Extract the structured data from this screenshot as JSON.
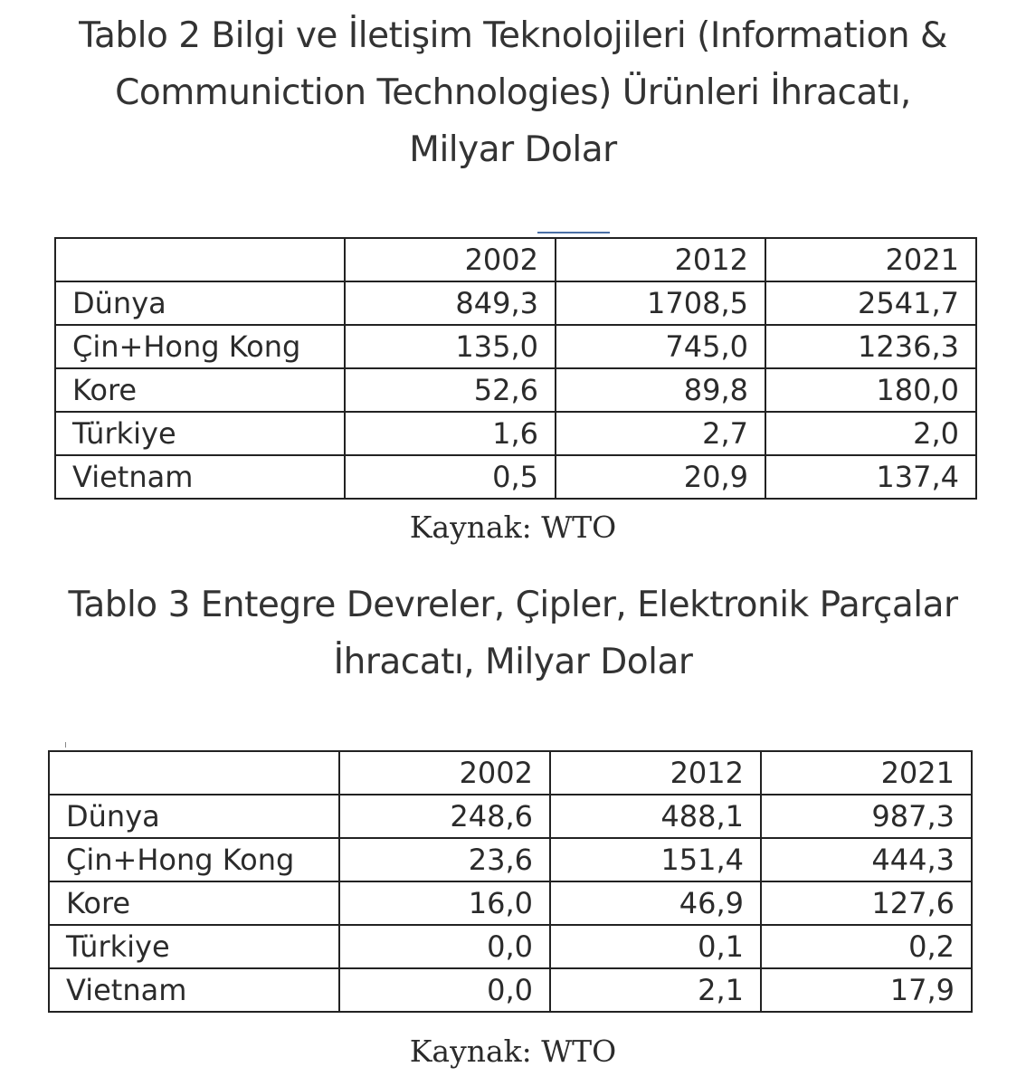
{
  "table1": {
    "title_lines": [
      "Tablo 2 Bilgi ve İletişim Teknolojileri (Information &",
      "Communiction Technologies) Ürünleri İhracatı,",
      "Milyar Dolar"
    ],
    "columns": [
      "",
      "2002",
      "2012",
      "2021"
    ],
    "rows": [
      {
        "country": "Dünya",
        "values": [
          "849,3",
          "1708,5",
          "2541,7"
        ]
      },
      {
        "country": "Çin+Hong Kong",
        "values": [
          "135,0",
          "745,0",
          "1236,3"
        ]
      },
      {
        "country": "Kore",
        "values": [
          "52,6",
          "89,8",
          "180,0"
        ]
      },
      {
        "country": "Türkiye",
        "values": [
          "1,6",
          "2,7",
          "2,0"
        ]
      },
      {
        "country": "Vietnam",
        "values": [
          "0,5",
          "20,9",
          "137,4"
        ]
      }
    ],
    "source": "Kaynak: WTO"
  },
  "table2": {
    "title_lines": [
      "Tablo 3 Entegre Devreler, Çipler, Elektronik Parçalar",
      "İhracatı, Milyar Dolar"
    ],
    "columns": [
      "",
      "2002",
      "2012",
      "2021"
    ],
    "rows": [
      {
        "country": "Dünya",
        "values": [
          "248,6",
          "488,1",
          "987,3"
        ]
      },
      {
        "country": "Çin+Hong Kong",
        "values": [
          "23,6",
          "151,4",
          "444,3"
        ]
      },
      {
        "country": "Kore",
        "values": [
          "16,0",
          "46,9",
          "127,6"
        ]
      },
      {
        "country": "Türkiye",
        "values": [
          "0,0",
          "0,1",
          "0,2"
        ]
      },
      {
        "country": "Vietnam",
        "values": [
          "0,0",
          "2,1",
          "17,9"
        ]
      }
    ],
    "source": "Kaynak: WTO"
  }
}
